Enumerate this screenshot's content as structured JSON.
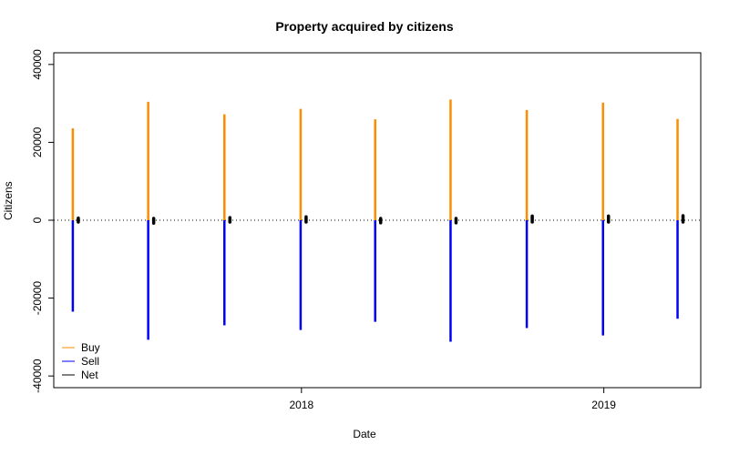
{
  "chart_data": {
    "type": "bar",
    "title": "Property acquired by citizens",
    "xlabel": "Date",
    "ylabel": "Citizens",
    "ylim": [
      -43000,
      43000
    ],
    "yticks": [
      -40000,
      -20000,
      0,
      20000,
      40000
    ],
    "ytick_labels": [
      "-40000",
      "-20000",
      "0",
      "20000",
      "40000"
    ],
    "xlim": [
      "2017-03-08",
      "2019-04-28"
    ],
    "xticks": [
      "2018-01-01",
      "2019-01-01"
    ],
    "xtick_labels": [
      "2018",
      "2019"
    ],
    "zero_line": "dotted",
    "legend": {
      "position": "bottom-left",
      "entries": [
        {
          "name": "Buy",
          "color": "#FF8C00"
        },
        {
          "name": "Sell",
          "color": "#0000FF"
        },
        {
          "name": "Net",
          "color": "#000000"
        }
      ]
    },
    "x": [
      "2017-03-31",
      "2017-06-30",
      "2017-09-30",
      "2017-12-31",
      "2018-03-31",
      "2018-06-30",
      "2018-09-30",
      "2018-12-31",
      "2019-03-31"
    ],
    "series": [
      {
        "name": "Buy",
        "color": "#FF8C00",
        "values": [
          23600,
          30400,
          27200,
          28600,
          25900,
          31000,
          28300,
          30200,
          26000
        ]
      },
      {
        "name": "Sell",
        "color": "#0000FF",
        "values": [
          -23500,
          -30700,
          -27000,
          -28200,
          -26100,
          -31200,
          -27700,
          -29600,
          -25300
        ]
      },
      {
        "name": "Net",
        "color": "#000000",
        "values": [
          100,
          -300,
          200,
          400,
          -200,
          -200,
          600,
          600,
          700
        ]
      }
    ]
  }
}
